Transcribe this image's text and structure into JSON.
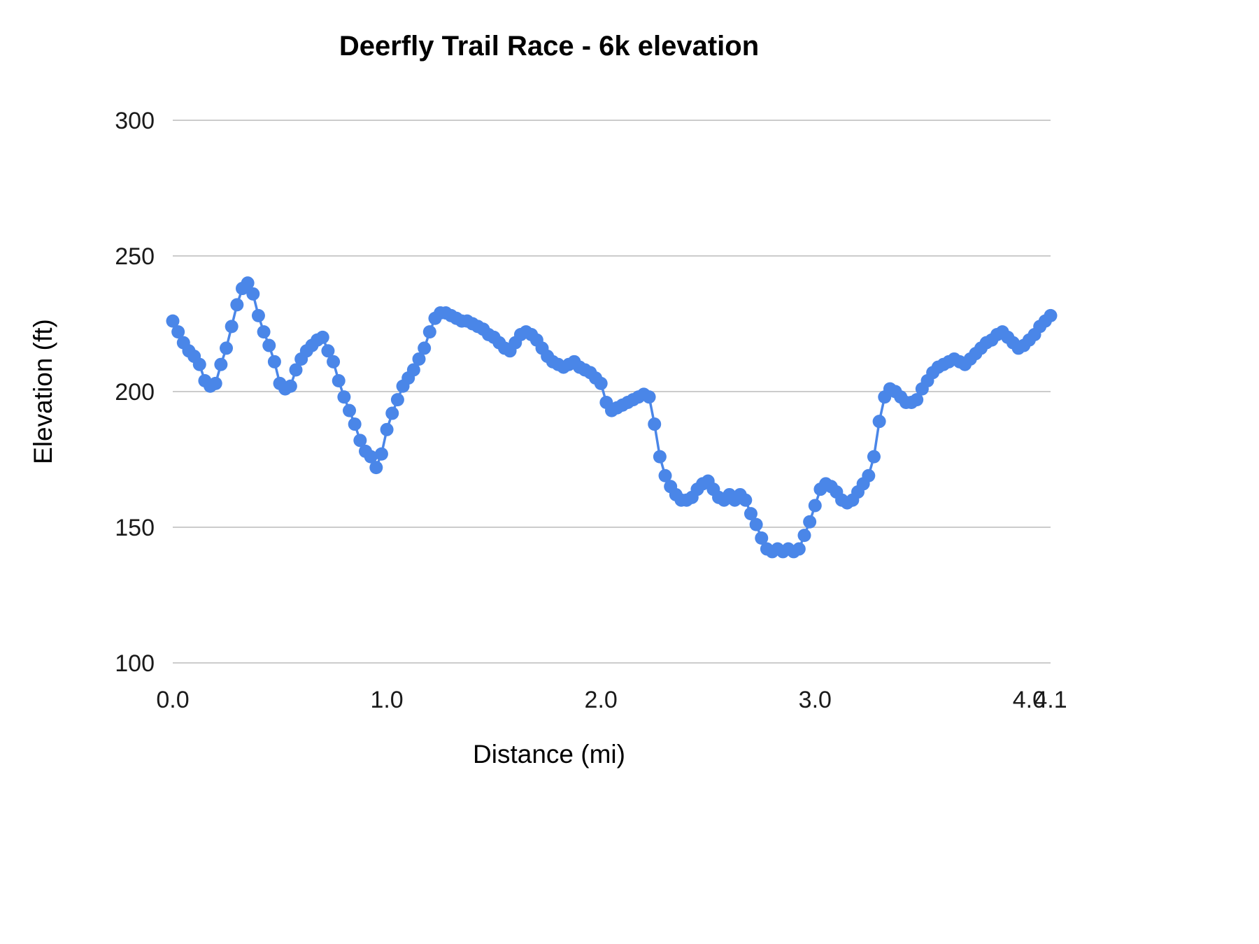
{
  "chart": {
    "title": "Deerfly Trail Race - 6k elevation",
    "xlabel": "Distance (mi)",
    "ylabel": "Elevation (ft)"
  },
  "chart_data": {
    "type": "line",
    "title": "Deerfly Trail Race - 6k elevation",
    "xlabel": "Distance (mi)",
    "ylabel": "Elevation (ft)",
    "xlim": [
      0,
      4.1
    ],
    "ylim": [
      100,
      300
    ],
    "x_ticks": [
      "0.0",
      "1.0",
      "2.0",
      "3.0",
      "4.0",
      "4.1"
    ],
    "x_tick_values": [
      0,
      1,
      2,
      3,
      4,
      4.1
    ],
    "y_ticks": [
      "100",
      "150",
      "200",
      "250",
      "300"
    ],
    "y_tick_values": [
      100,
      150,
      200,
      250,
      300
    ],
    "grid": "horizontal",
    "legend": "none",
    "marker": "circle",
    "series_color": "#4a86e8",
    "grid_color": "#cccccc",
    "x": [
      0,
      0.025,
      0.05,
      0.075,
      0.1,
      0.125,
      0.15,
      0.175,
      0.2,
      0.225,
      0.25,
      0.275,
      0.3,
      0.325,
      0.35,
      0.375,
      0.4,
      0.425,
      0.45,
      0.475,
      0.5,
      0.525,
      0.55,
      0.575,
      0.6,
      0.625,
      0.65,
      0.675,
      0.7,
      0.725,
      0.75,
      0.775,
      0.8,
      0.825,
      0.85,
      0.875,
      0.9,
      0.925,
      0.95,
      0.975,
      1,
      1.025,
      1.05,
      1.075,
      1.1,
      1.125,
      1.15,
      1.175,
      1.2,
      1.225,
      1.25,
      1.275,
      1.3,
      1.325,
      1.35,
      1.375,
      1.4,
      1.425,
      1.45,
      1.475,
      1.5,
      1.525,
      1.55,
      1.575,
      1.6,
      1.625,
      1.65,
      1.675,
      1.7,
      1.725,
      1.75,
      1.775,
      1.8,
      1.825,
      1.85,
      1.875,
      1.9,
      1.925,
      1.95,
      1.975,
      2,
      2.025,
      2.05,
      2.075,
      2.1,
      2.125,
      2.15,
      2.175,
      2.2,
      2.225,
      2.25,
      2.275,
      2.3,
      2.325,
      2.35,
      2.375,
      2.4,
      2.425,
      2.45,
      2.475,
      2.5,
      2.525,
      2.55,
      2.575,
      2.6,
      2.625,
      2.65,
      2.675,
      2.7,
      2.725,
      2.75,
      2.775,
      2.8,
      2.825,
      2.85,
      2.875,
      2.9,
      2.925,
      2.95,
      2.975,
      3,
      3.025,
      3.05,
      3.075,
      3.1,
      3.125,
      3.15,
      3.175,
      3.2,
      3.225,
      3.25,
      3.275,
      3.3,
      3.325,
      3.35,
      3.375,
      3.4,
      3.425,
      3.45,
      3.475,
      3.5,
      3.525,
      3.55,
      3.575,
      3.6,
      3.625,
      3.65,
      3.675,
      3.7,
      3.725,
      3.75,
      3.775,
      3.8,
      3.825,
      3.85,
      3.875,
      3.9,
      3.925,
      3.95,
      3.975,
      4,
      4.025,
      4.05,
      4.075,
      4.1
    ],
    "elevation_ft": [
      226,
      222,
      218,
      215,
      213,
      210,
      204,
      202,
      203,
      210,
      216,
      224,
      232,
      238,
      240,
      236,
      228,
      222,
      217,
      211,
      203,
      201,
      202,
      208,
      212,
      215,
      217,
      219,
      220,
      215,
      211,
      204,
      198,
      193,
      188,
      182,
      178,
      176,
      172,
      177,
      186,
      192,
      197,
      202,
      205,
      208,
      212,
      216,
      222,
      227,
      229,
      229,
      228,
      227,
      226,
      226,
      225,
      224,
      223,
      221,
      220,
      218,
      216,
      215,
      218,
      221,
      222,
      221,
      219,
      216,
      213,
      211,
      210,
      209,
      210,
      211,
      209,
      208,
      207,
      205,
      203,
      196,
      193,
      194,
      195,
      196,
      197,
      198,
      199,
      198,
      188,
      176,
      169,
      165,
      162,
      160,
      160,
      161,
      164,
      166,
      167,
      164,
      161,
      160,
      162,
      160,
      162,
      160,
      155,
      151,
      146,
      142,
      141,
      142,
      141,
      142,
      141,
      142,
      147,
      152,
      158,
      164,
      166,
      165,
      163,
      160,
      159,
      160,
      163,
      166,
      169,
      176,
      189,
      198,
      201,
      200,
      198,
      196,
      196,
      197,
      201,
      204,
      207,
      209,
      210,
      211,
      212,
      211,
      210,
      212,
      214,
      216,
      218,
      219,
      221,
      222,
      220,
      218,
      216,
      217,
      219,
      221,
      224,
      226,
      228
    ]
  }
}
